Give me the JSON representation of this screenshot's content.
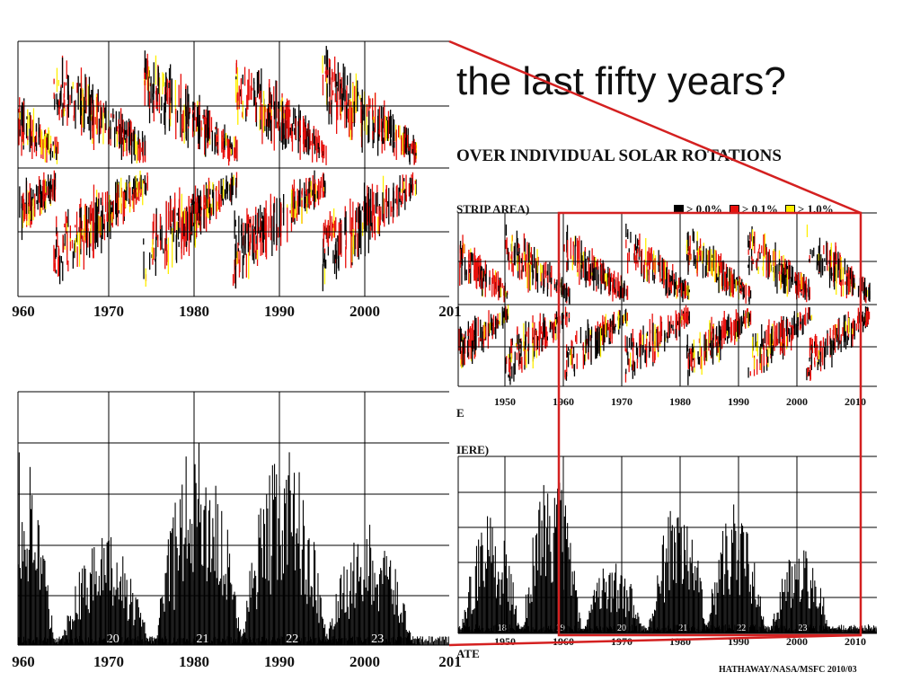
{
  "slide_title": "the last fifty years?",
  "figure": {
    "title": "OVER INDIVIDUAL SOLAR ROTATIONS",
    "subtitle": "STRIP AREA)",
    "legend": [
      {
        "label": "> 0.0%",
        "color": "#000000"
      },
      {
        "label": "> 0.1%",
        "color": "#e8100c"
      },
      {
        "label": "> 1.0%",
        "color": "#ffee00"
      }
    ],
    "fragment_date": "E",
    "fragment_here": "IERE)",
    "fragment_date2": "ATE",
    "credit": "HATHAWAY/NASA/MSFC  2010/03"
  },
  "chart_data": [
    {
      "type": "heatmap",
      "name": "butterfly-zoomed",
      "x_ticks": [
        "960",
        "1970",
        "1980",
        "1990",
        "2000",
        "201"
      ],
      "cycle_centers": [
        1958.5,
        1969,
        1979.5,
        1990,
        2000.5
      ],
      "latitude_bands": 2
    },
    {
      "type": "bar",
      "name": "area-zoomed",
      "x_ticks": [
        "960",
        "1970",
        "1980",
        "1990",
        "2000",
        "201"
      ],
      "cycle_labels": [
        {
          "year": 1970.5,
          "label": "20"
        },
        {
          "year": 1981,
          "label": "21"
        },
        {
          "year": 1991.5,
          "label": "22"
        },
        {
          "year": 2001.5,
          "label": "23"
        }
      ],
      "cycle_peaks": [
        {
          "year": 1958.5,
          "value": 0.9
        },
        {
          "year": 1969.5,
          "value": 0.45
        },
        {
          "year": 1980.5,
          "value": 0.83
        },
        {
          "year": 1990.5,
          "value": 0.82
        },
        {
          "year": 2000.5,
          "value": 0.48
        }
      ]
    },
    {
      "type": "heatmap",
      "name": "butterfly-full",
      "x_ticks": [
        "1950",
        "1960",
        "1970",
        "1980",
        "1990",
        "2000",
        "2010"
      ],
      "cycle_centers": [
        1945,
        1955.5,
        1965.5,
        1976,
        1986.5,
        1997,
        2007
      ],
      "latitude_bands": 2
    },
    {
      "type": "bar",
      "name": "area-full",
      "x_ticks": [
        "1950",
        "1960",
        "1970",
        "1980",
        "1990",
        "2000",
        "2010"
      ],
      "cycle_labels": [
        {
          "year": 1949.5,
          "label": "18"
        },
        {
          "year": 1959.5,
          "label": "19"
        },
        {
          "year": 1970,
          "label": "20"
        },
        {
          "year": 1980.5,
          "label": "21"
        },
        {
          "year": 1990.5,
          "label": "22"
        },
        {
          "year": 2001,
          "label": "23"
        }
      ],
      "cycle_peaks": [
        {
          "year": 1947.5,
          "value": 0.7
        },
        {
          "year": 1958,
          "value": 1.0
        },
        {
          "year": 1968.5,
          "value": 0.42
        },
        {
          "year": 1979.5,
          "value": 0.78
        },
        {
          "year": 1989.5,
          "value": 0.77
        },
        {
          "year": 2000.5,
          "value": 0.5
        },
        {
          "year": 2010,
          "value": 0.02
        }
      ]
    }
  ],
  "highlight_color": "#d42020"
}
